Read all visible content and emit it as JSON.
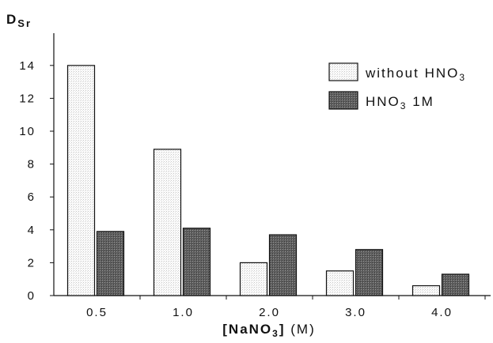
{
  "chart_data": {
    "type": "bar",
    "title": "",
    "ylabel": "D",
    "ylabel_subscript": "Sr",
    "xlabel_main": "[NaNO",
    "xlabel_sub": "3",
    "xlabel_close": "]",
    "xlabel_unit": "(M)",
    "categories": [
      "0.5",
      "1.0",
      "2.0",
      "3.0",
      "4.0"
    ],
    "series": [
      {
        "name": "without HNO",
        "name_sub": "3",
        "values": [
          14.0,
          8.9,
          2.0,
          1.5,
          0.6
        ]
      },
      {
        "name": "HNO",
        "name_sub": "3",
        "name_suffix": " 1M",
        "values": [
          3.9,
          4.1,
          3.7,
          2.8,
          1.3
        ]
      }
    ],
    "ylim": [
      0,
      16
    ],
    "yticks": [
      "0",
      "2",
      "4",
      "6",
      "8",
      "10",
      "12",
      "14"
    ],
    "grid": false,
    "legend_position": "top-right",
    "colors": {
      "series_light_fill": "#f4f4f4",
      "series_dark_fill": "#6c6c6c",
      "axis": "#111111"
    }
  }
}
